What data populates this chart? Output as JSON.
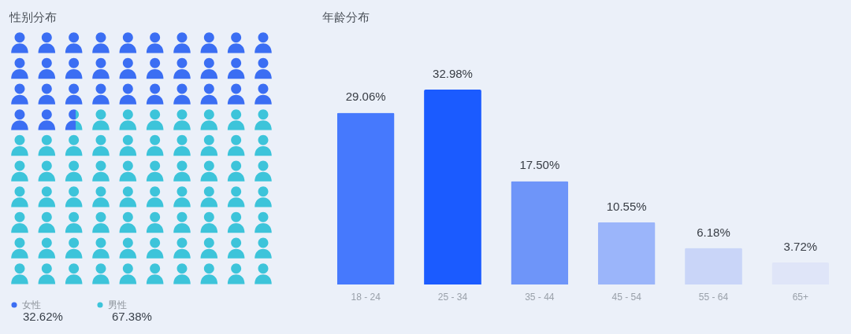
{
  "chart_data": [
    {
      "type": "other",
      "title": "性别分布",
      "series": [
        {
          "name": "女性",
          "color": "#3b6ef3",
          "values": [
            32.62
          ],
          "value_labels": [
            "32.62%"
          ]
        },
        {
          "name": "男性",
          "color": "#3dc4da",
          "values": [
            67.38
          ],
          "value_labels": [
            "67.38%"
          ]
        }
      ],
      "legend": "bottom left"
    },
    {
      "type": "bar",
      "title": "年龄分布",
      "categories": [
        "18 - 24",
        "25 - 34",
        "35 - 44",
        "45 - 54",
        "55 - 64",
        "65+"
      ],
      "values": [
        29.06,
        32.98,
        17.5,
        10.55,
        6.18,
        3.72
      ],
      "colors": [
        "#4679fd",
        "#1b5bff",
        "#6e95f9",
        "#9bb5fa",
        "#c9d5f8",
        "#dfe5f8"
      ],
      "value_labels": [
        "29.06%",
        "32.98%",
        "17.50%",
        "10.55%",
        "6.18%",
        "3.72%"
      ]
    }
  ]
}
